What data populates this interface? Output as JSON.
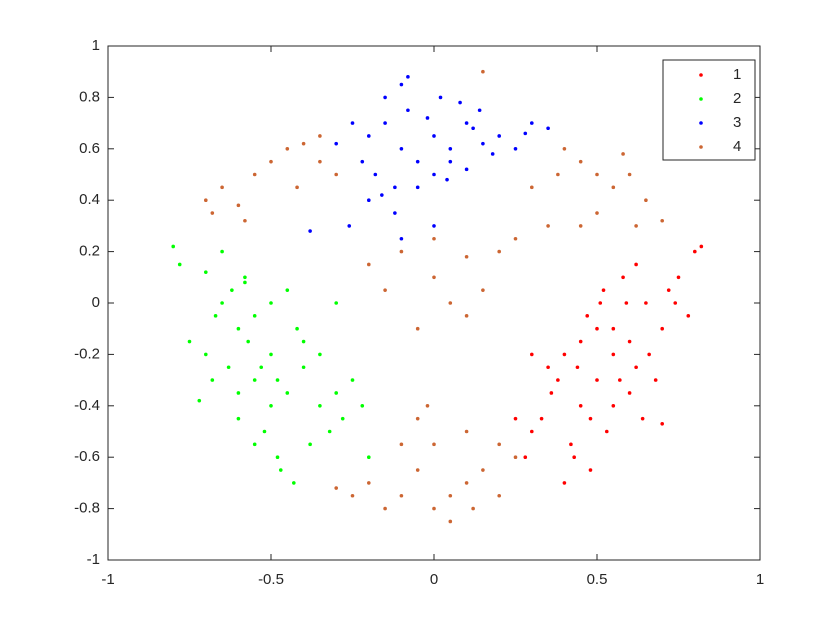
{
  "chart_data": {
    "type": "scatter",
    "xlim": [
      -1,
      1
    ],
    "xticks": [
      -1,
      -0.5,
      0,
      0.5,
      1
    ],
    "ylim": [
      -1,
      1
    ],
    "yticks": [
      -1,
      -0.8,
      -0.6,
      -0.4,
      -0.2,
      0,
      0.2,
      0.4,
      0.6,
      0.8,
      1
    ],
    "legend": "upper-right",
    "series": [
      {
        "name": "1",
        "color": "#ff0000",
        "x": [
          0.55,
          0.6,
          0.62,
          0.5,
          0.45,
          0.7,
          0.65,
          0.58,
          0.52,
          0.4,
          0.35,
          0.3,
          0.28,
          0.42,
          0.48,
          0.68,
          0.72,
          0.75,
          0.8,
          0.78,
          0.6,
          0.55,
          0.5,
          0.45,
          0.38,
          0.33,
          0.25,
          0.3,
          0.4,
          0.62,
          0.66,
          0.57,
          0.53,
          0.47,
          0.43,
          0.36,
          0.64,
          0.7,
          0.59,
          0.51,
          0.44,
          0.48,
          0.55,
          0.74,
          0.82
        ],
        "y": [
          -0.2,
          -0.15,
          -0.25,
          -0.3,
          -0.4,
          -0.1,
          0.0,
          0.1,
          0.05,
          -0.2,
          -0.25,
          -0.5,
          -0.6,
          -0.55,
          -0.65,
          -0.3,
          0.05,
          0.1,
          0.2,
          -0.05,
          -0.35,
          -0.4,
          -0.1,
          -0.15,
          -0.3,
          -0.45,
          -0.45,
          -0.2,
          -0.7,
          0.15,
          -0.2,
          -0.3,
          -0.5,
          -0.05,
          -0.6,
          -0.35,
          -0.45,
          -0.47,
          0.0,
          0.0,
          -0.25,
          -0.45,
          -0.1,
          0.0,
          0.22
        ]
      },
      {
        "name": "2",
        "color": "#00ff00",
        "x": [
          -0.5,
          -0.55,
          -0.6,
          -0.45,
          -0.4,
          -0.35,
          -0.65,
          -0.7,
          -0.62,
          -0.58,
          -0.52,
          -0.48,
          -0.42,
          -0.3,
          -0.28,
          -0.25,
          -0.75,
          -0.78,
          -0.8,
          -0.72,
          -0.68,
          -0.6,
          -0.55,
          -0.5,
          -0.45,
          -0.4,
          -0.35,
          -0.32,
          -0.5,
          -0.55,
          -0.6,
          -0.65,
          -0.47,
          -0.43,
          -0.38,
          -0.53,
          -0.57,
          -0.63,
          -0.67,
          -0.22,
          -0.2,
          -0.3,
          -0.48,
          -0.58,
          -0.7
        ],
        "y": [
          -0.2,
          -0.3,
          -0.1,
          -0.35,
          -0.25,
          -0.4,
          0.0,
          -0.2,
          0.05,
          0.1,
          -0.5,
          -0.6,
          -0.1,
          -0.35,
          -0.45,
          -0.3,
          -0.15,
          0.15,
          0.22,
          -0.38,
          -0.3,
          -0.45,
          -0.05,
          0.0,
          0.05,
          -0.15,
          -0.2,
          -0.5,
          -0.4,
          -0.55,
          -0.35,
          0.2,
          -0.65,
          -0.7,
          -0.55,
          -0.25,
          -0.15,
          -0.25,
          -0.05,
          -0.4,
          -0.6,
          0.0,
          -0.3,
          0.08,
          0.12
        ]
      },
      {
        "name": "3",
        "color": "#0000ff",
        "x": [
          -0.2,
          -0.15,
          -0.1,
          -0.05,
          0.0,
          0.05,
          0.1,
          0.15,
          -0.25,
          -0.18,
          -0.12,
          -0.08,
          0.02,
          0.08,
          0.12,
          0.2,
          0.25,
          0.3,
          0.35,
          -0.3,
          -0.22,
          -0.1,
          0.0,
          -0.05,
          0.05,
          -0.15,
          -0.2,
          -0.12,
          0.1,
          -0.08,
          -0.02,
          0.04,
          0.18,
          0.28,
          -0.26,
          -0.38,
          -0.16,
          0.0,
          -0.1,
          0.14
        ],
        "y": [
          0.65,
          0.7,
          0.6,
          0.55,
          0.65,
          0.6,
          0.7,
          0.62,
          0.7,
          0.5,
          0.45,
          0.75,
          0.8,
          0.78,
          0.68,
          0.65,
          0.6,
          0.7,
          0.68,
          0.62,
          0.55,
          0.85,
          0.5,
          0.45,
          0.55,
          0.8,
          0.4,
          0.35,
          0.52,
          0.88,
          0.72,
          0.48,
          0.58,
          0.66,
          0.3,
          0.28,
          0.42,
          0.3,
          0.25,
          0.75
        ]
      },
      {
        "name": "4",
        "color": "#cc6633",
        "x": [
          -0.7,
          -0.65,
          -0.6,
          -0.55,
          -0.5,
          -0.45,
          -0.4,
          -0.35,
          -0.42,
          -0.58,
          -0.68,
          -0.3,
          -0.35,
          0.4,
          0.45,
          0.5,
          0.55,
          0.6,
          0.65,
          0.5,
          0.45,
          0.38,
          0.58,
          0.62,
          0.3,
          0.35,
          0.7,
          0.15,
          -0.1,
          0.0,
          0.05,
          0.1,
          -0.05,
          0.15,
          0.2,
          -0.15,
          0.0,
          0.1,
          -0.2,
          0.25,
          -0.2,
          -0.15,
          -0.1,
          -0.05,
          0.0,
          0.05,
          0.1,
          0.15,
          0.2,
          0.0,
          -0.05,
          0.1,
          -0.25,
          0.05,
          0.25,
          -0.1,
          0.12,
          -0.02,
          0.2,
          -0.3
        ],
        "y": [
          0.4,
          0.45,
          0.38,
          0.5,
          0.55,
          0.6,
          0.62,
          0.55,
          0.45,
          0.32,
          0.35,
          0.5,
          0.65,
          0.6,
          0.55,
          0.5,
          0.45,
          0.5,
          0.4,
          0.35,
          0.3,
          0.5,
          0.58,
          0.3,
          0.45,
          0.3,
          0.32,
          0.9,
          0.2,
          0.1,
          0.0,
          -0.05,
          -0.1,
          0.05,
          0.2,
          0.05,
          0.25,
          0.18,
          0.15,
          0.25,
          -0.7,
          -0.8,
          -0.75,
          -0.65,
          -0.8,
          -0.75,
          -0.7,
          -0.65,
          -0.75,
          -0.55,
          -0.45,
          -0.5,
          -0.75,
          -0.85,
          -0.6,
          -0.55,
          -0.8,
          -0.4,
          -0.55,
          -0.72
        ]
      }
    ]
  }
}
